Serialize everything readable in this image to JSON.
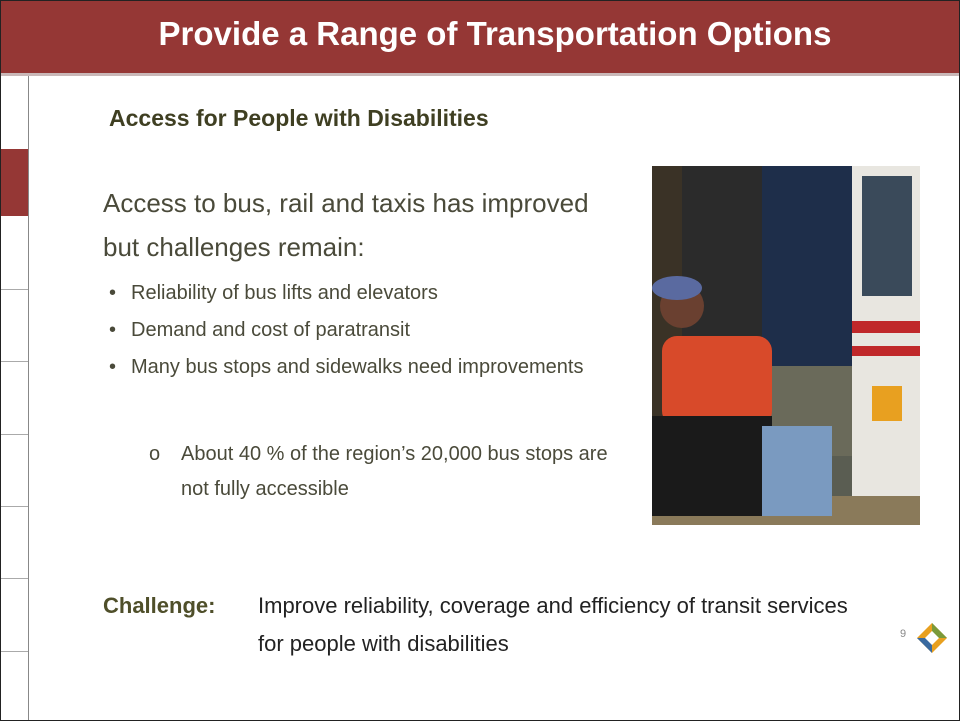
{
  "header": {
    "title": "Provide a Range of Transportation Options"
  },
  "content": {
    "subtitle": "Access for People with Disabilities",
    "intro": "Access to bus, rail and taxis has improved but challenges remain:",
    "bullets": [
      "Reliability of bus lifts and elevators",
      "Demand and cost of paratransit",
      "Many bus stops and sidewalks need improvements"
    ],
    "sub_bullets": [
      "About 40 % of the region’s 20,000 bus stops are not fully accessible"
    ]
  },
  "challenge": {
    "label": "Challenge:",
    "text": "Improve reliability, coverage and efficiency of transit services for people with disabilities"
  },
  "footer": {
    "page_number": "9"
  }
}
